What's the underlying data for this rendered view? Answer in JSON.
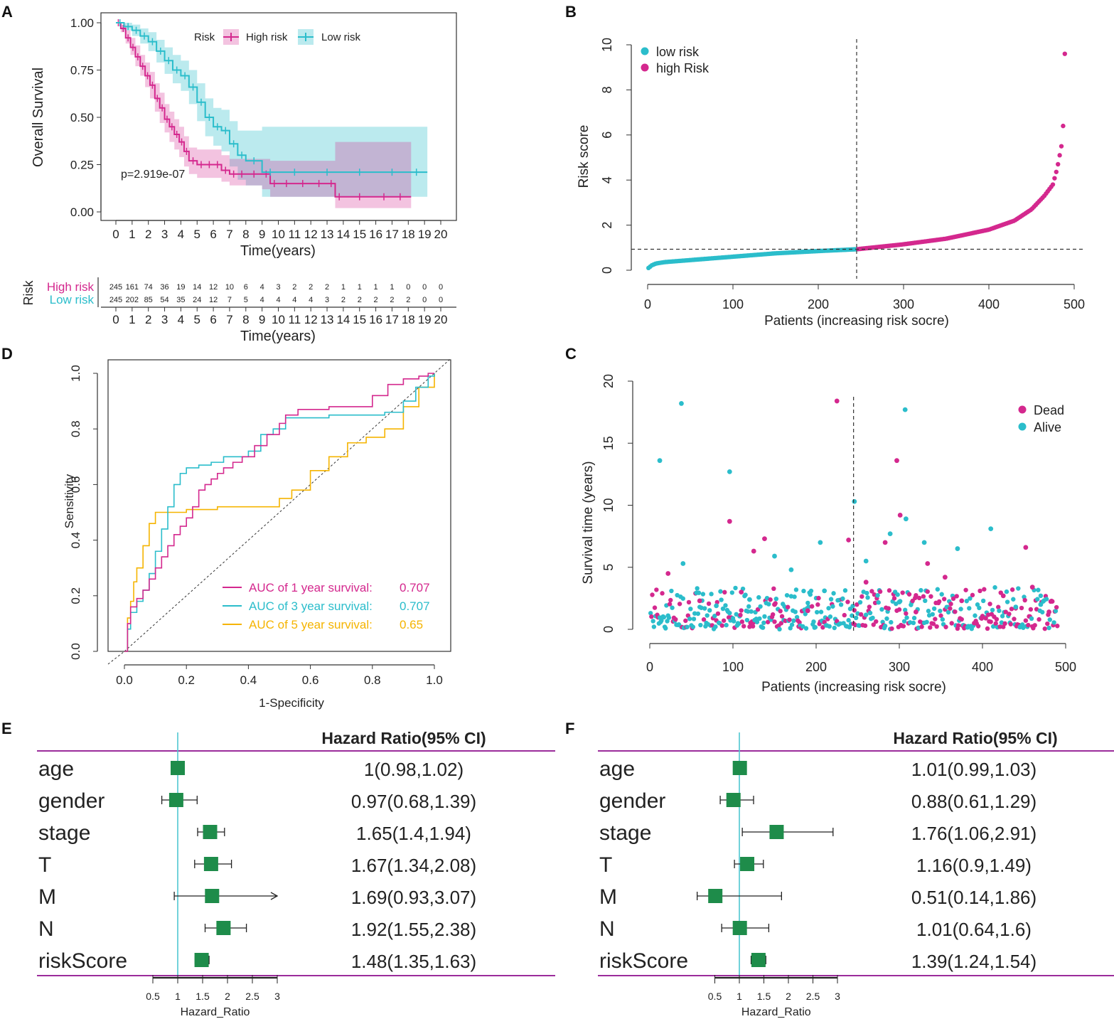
{
  "colors": {
    "magenta": "#d4288e",
    "cyan": "#2bbdcb",
    "orange": "#f5b400",
    "green": "#1e8c4a",
    "purple": "#9b2c9b",
    "refline": "#4fc7d0"
  },
  "chart_data": [
    {
      "panel": "A",
      "type": "line",
      "title": "",
      "xlabel": "Time(years)",
      "ylabel": "Overall  Survival",
      "xlim": [
        0,
        20
      ],
      "ylim": [
        0,
        1
      ],
      "xticks": [
        "0",
        "1",
        "2",
        "3",
        "4",
        "5",
        "6",
        "7",
        "8",
        "9",
        "10",
        "11",
        "12",
        "13",
        "14",
        "15",
        "16",
        "17",
        "18",
        "19",
        "20"
      ],
      "yticks": [
        "0.00",
        "0.25",
        "0.50",
        "0.75",
        "1.00"
      ],
      "legend_title": "Risk",
      "pvalue": "p=2.919e-07",
      "series": [
        {
          "name": "High risk",
          "x": [
            0,
            0.3,
            0.6,
            0.9,
            1.2,
            1.5,
            1.8,
            2.1,
            2.4,
            2.7,
            3,
            3.3,
            3.6,
            3.9,
            4.2,
            4.5,
            5,
            5.5,
            6,
            6.5,
            7,
            7.5,
            8,
            9,
            9.5,
            10,
            11,
            12,
            13,
            13.5,
            14,
            16,
            17,
            18
          ],
          "y": [
            1,
            0.97,
            0.92,
            0.87,
            0.82,
            0.77,
            0.72,
            0.67,
            0.6,
            0.55,
            0.49,
            0.45,
            0.41,
            0.37,
            0.32,
            0.27,
            0.25,
            0.25,
            0.25,
            0.22,
            0.2,
            0.2,
            0.2,
            0.2,
            0.15,
            0.15,
            0.15,
            0.15,
            0.15,
            0.08,
            0.08,
            0.08,
            0.08,
            0.08
          ],
          "lower": [
            1,
            0.95,
            0.89,
            0.83,
            0.77,
            0.72,
            0.66,
            0.6,
            0.53,
            0.47,
            0.42,
            0.37,
            0.33,
            0.29,
            0.24,
            0.2,
            0.18,
            0.18,
            0.18,
            0.16,
            0.14,
            0.14,
            0.14,
            0.12,
            0.08,
            0.08,
            0.08,
            0.08,
            0.08,
            0.02,
            0.02,
            0.02,
            0.02,
            0.02
          ],
          "upper": [
            1,
            0.99,
            0.96,
            0.92,
            0.88,
            0.83,
            0.79,
            0.74,
            0.68,
            0.63,
            0.57,
            0.53,
            0.49,
            0.45,
            0.4,
            0.34,
            0.33,
            0.33,
            0.33,
            0.3,
            0.28,
            0.28,
            0.28,
            0.28,
            0.27,
            0.27,
            0.27,
            0.27,
            0.27,
            0.37,
            0.37,
            0.37,
            0.37,
            0.37
          ]
        },
        {
          "name": "Low risk",
          "x": [
            0,
            0.5,
            1,
            1.5,
            2,
            2.5,
            3,
            3.5,
            4,
            4.5,
            5,
            5.5,
            6,
            6.5,
            7,
            7.5,
            8,
            9,
            10,
            12,
            14,
            16,
            18,
            19
          ],
          "y": [
            1,
            0.98,
            0.96,
            0.93,
            0.9,
            0.85,
            0.8,
            0.75,
            0.72,
            0.66,
            0.58,
            0.5,
            0.45,
            0.43,
            0.36,
            0.3,
            0.27,
            0.21,
            0.21,
            0.21,
            0.21,
            0.21,
            0.21,
            0.21
          ],
          "lower": [
            1,
            0.96,
            0.93,
            0.89,
            0.85,
            0.79,
            0.73,
            0.68,
            0.64,
            0.57,
            0.48,
            0.4,
            0.35,
            0.32,
            0.24,
            0.17,
            0.14,
            0.08,
            0.08,
            0.08,
            0.08,
            0.08,
            0.08,
            0.08
          ],
          "upper": [
            1,
            1,
            0.99,
            0.97,
            0.95,
            0.91,
            0.87,
            0.83,
            0.8,
            0.75,
            0.68,
            0.6,
            0.55,
            0.54,
            0.48,
            0.43,
            0.43,
            0.45,
            0.45,
            0.45,
            0.45,
            0.45,
            0.45,
            0.45
          ]
        }
      ]
    },
    {
      "panel": "A-table",
      "type": "table",
      "title": "Risk",
      "xlabel": "Time(years)",
      "columns": [
        "0",
        "1",
        "2",
        "3",
        "4",
        "5",
        "6",
        "7",
        "8",
        "9",
        "10",
        "11",
        "12",
        "13",
        "14",
        "15",
        "16",
        "17",
        "18",
        "19",
        "20"
      ],
      "rows": [
        {
          "name": "High risk",
          "values": [
            "245",
            "161",
            "74",
            "36",
            "19",
            "14",
            "12",
            "10",
            "6",
            "4",
            "3",
            "2",
            "2",
            "2",
            "1",
            "1",
            "1",
            "1",
            "0",
            "0",
            "0"
          ]
        },
        {
          "name": "Low risk",
          "values": [
            "245",
            "202",
            "85",
            "54",
            "35",
            "24",
            "12",
            "7",
            "5",
            "4",
            "4",
            "4",
            "4",
            "3",
            "2",
            "2",
            "2",
            "2",
            "2",
            "0",
            "0"
          ]
        }
      ]
    },
    {
      "panel": "B",
      "type": "scatter",
      "xlabel": "Patients (increasing risk socre)",
      "ylabel": "Risk score",
      "xlim": [
        0,
        500
      ],
      "ylim": [
        0,
        10
      ],
      "xticks": [
        "0",
        "100",
        "200",
        "300",
        "400",
        "500"
      ],
      "yticks": [
        "0",
        "2",
        "4",
        "6",
        "8",
        "10"
      ],
      "cutoff_x": 245,
      "cutoff_y": 0.93,
      "n": 490,
      "series": [
        {
          "name": "low risk",
          "x_range": [
            1,
            245
          ],
          "y_range": [
            0.1,
            0.93
          ]
        },
        {
          "name": "high Risk",
          "x_range": [
            246,
            490
          ],
          "y_range": [
            0.93,
            10
          ]
        }
      ],
      "curve_points": [
        [
          1,
          0.1
        ],
        [
          5,
          0.22
        ],
        [
          10,
          0.3
        ],
        [
          20,
          0.36
        ],
        [
          50,
          0.45
        ],
        [
          100,
          0.6
        ],
        [
          150,
          0.75
        ],
        [
          200,
          0.85
        ],
        [
          245,
          0.93
        ],
        [
          300,
          1.15
        ],
        [
          350,
          1.4
        ],
        [
          400,
          1.8
        ],
        [
          430,
          2.2
        ],
        [
          450,
          2.7
        ],
        [
          465,
          3.3
        ],
        [
          475,
          3.8
        ],
        [
          480,
          4.5
        ],
        [
          485,
          5.5
        ],
        [
          487,
          6.4
        ],
        [
          488,
          8.8
        ],
        [
          489,
          9.6
        ],
        [
          490,
          10
        ]
      ]
    },
    {
      "panel": "C",
      "type": "scatter",
      "xlabel": "Patients (increasing risk socre)",
      "ylabel": "Survival time (years)",
      "xlim": [
        0,
        500
      ],
      "ylim": [
        0,
        20
      ],
      "xticks": [
        "0",
        "100",
        "200",
        "300",
        "400",
        "500"
      ],
      "yticks": [
        "0",
        "5",
        "10",
        "15",
        "20"
      ],
      "cutoff_x": 245,
      "series": [
        {
          "name": "Dead",
          "points": [
            [
              22,
              4.5
            ],
            [
              96,
              8.7
            ],
            [
              138,
              7.3
            ],
            [
              125,
              6.3
            ],
            [
              225,
              18.4
            ],
            [
              239,
              7.2
            ],
            [
              283,
              7.0
            ],
            [
              297,
              13.6
            ],
            [
              301,
              9.2
            ],
            [
              334,
              5.3
            ],
            [
              355,
              4.2
            ],
            [
              375,
              2.3
            ],
            [
              452,
              6.6
            ],
            [
              425,
              2.7
            ],
            [
              460,
              3.4
            ],
            [
              60,
              2.3
            ],
            [
              110,
              3.0
            ],
            [
              150,
              2.0
            ],
            [
              190,
              1.5
            ],
            [
              260,
              3.8
            ],
            [
              320,
              1.4
            ],
            [
              400,
              1.0
            ],
            [
              480,
              1.4
            ]
          ]
        },
        {
          "name": "Alive",
          "points": [
            [
              12,
              13.6
            ],
            [
              38,
              18.2
            ],
            [
              96,
              12.7
            ],
            [
              246,
              10.3
            ],
            [
              307,
              17.7
            ],
            [
              308,
              8.9
            ],
            [
              289,
              7.7
            ],
            [
              410,
              8.1
            ],
            [
              370,
              6.5
            ],
            [
              205,
              7.0
            ],
            [
              40,
              5.3
            ],
            [
              150,
              5.9
            ],
            [
              330,
              7.0
            ],
            [
              170,
              4.8
            ],
            [
              260,
              5.5
            ],
            [
              210,
              3.1
            ],
            [
              80,
              1.9
            ],
            [
              120,
              2.4
            ],
            [
              300,
              2.2
            ],
            [
              440,
              1.8
            ],
            [
              470,
              2.0
            ]
          ]
        }
      ]
    },
    {
      "panel": "D",
      "type": "line",
      "xlabel": "1-Specificity",
      "ylabel": "Sensitivity",
      "xlim": [
        0,
        1
      ],
      "ylim": [
        0,
        1
      ],
      "xticks": [
        "0.0",
        "0.2",
        "0.4",
        "0.6",
        "0.8",
        "1.0"
      ],
      "yticks": [
        "0.0",
        "0.2",
        "0.4",
        "0.6",
        "0.8",
        "1.0"
      ],
      "series": [
        {
          "name": "AUC of 1 year survival:",
          "auc": "0.707",
          "x": [
            0,
            0.01,
            0.02,
            0.04,
            0.06,
            0.08,
            0.1,
            0.12,
            0.14,
            0.16,
            0.18,
            0.2,
            0.22,
            0.24,
            0.26,
            0.28,
            0.3,
            0.32,
            0.35,
            0.38,
            0.42,
            0.46,
            0.5,
            0.52,
            0.56,
            0.6,
            0.66,
            0.72,
            0.8,
            0.85,
            0.9,
            0.95,
            0.98,
            1
          ],
          "y": [
            0,
            0.1,
            0.16,
            0.19,
            0.22,
            0.26,
            0.3,
            0.34,
            0.38,
            0.42,
            0.45,
            0.48,
            0.52,
            0.58,
            0.6,
            0.62,
            0.64,
            0.66,
            0.68,
            0.7,
            0.74,
            0.78,
            0.82,
            0.85,
            0.87,
            0.87,
            0.88,
            0.88,
            0.92,
            0.96,
            0.98,
            0.99,
            1,
            1
          ]
        },
        {
          "name": "AUC of 3 year survival:",
          "auc": "0.707",
          "x": [
            0,
            0.01,
            0.02,
            0.04,
            0.06,
            0.08,
            0.1,
            0.12,
            0.14,
            0.16,
            0.18,
            0.2,
            0.24,
            0.28,
            0.32,
            0.36,
            0.4,
            0.44,
            0.48,
            0.52,
            0.56,
            0.6,
            0.66,
            0.72,
            0.78,
            0.84,
            0.9,
            0.94,
            0.98,
            1
          ],
          "y": [
            0,
            0.08,
            0.14,
            0.18,
            0.22,
            0.28,
            0.36,
            0.44,
            0.52,
            0.6,
            0.64,
            0.66,
            0.67,
            0.68,
            0.7,
            0.7,
            0.72,
            0.78,
            0.8,
            0.84,
            0.84,
            0.84,
            0.85,
            0.85,
            0.85,
            0.86,
            0.9,
            0.95,
            0.99,
            1
          ]
        },
        {
          "name": "AUC of 5 year survival:",
          "auc": "0.65",
          "x": [
            0,
            0.01,
            0.02,
            0.03,
            0.04,
            0.06,
            0.08,
            0.1,
            0.14,
            0.2,
            0.26,
            0.3,
            0.34,
            0.4,
            0.46,
            0.5,
            0.54,
            0.6,
            0.66,
            0.72,
            0.78,
            0.84,
            0.9,
            0.95,
            1
          ],
          "y": [
            0,
            0.12,
            0.18,
            0.25,
            0.3,
            0.38,
            0.46,
            0.5,
            0.5,
            0.51,
            0.51,
            0.52,
            0.52,
            0.52,
            0.52,
            0.55,
            0.58,
            0.65,
            0.7,
            0.75,
            0.77,
            0.8,
            0.88,
            0.95,
            1
          ]
        }
      ]
    },
    {
      "panel": "E",
      "type": "forest",
      "header": "Hazard Ratio(95% CI)",
      "xlabel": "Hazard_Ratio",
      "xlim": [
        0.5,
        3
      ],
      "xticks": [
        "0.5",
        "1",
        "1.5",
        "2",
        "2.5",
        "3"
      ],
      "rows": [
        {
          "label": "age",
          "hr": 1,
          "lo": 0.98,
          "hi": 1.02,
          "text": "1(0.98,1.02)"
        },
        {
          "label": "gender",
          "hr": 0.97,
          "lo": 0.68,
          "hi": 1.39,
          "text": "0.97(0.68,1.39)"
        },
        {
          "label": "stage",
          "hr": 1.65,
          "lo": 1.4,
          "hi": 1.94,
          "text": "1.65(1.4,1.94)"
        },
        {
          "label": "T",
          "hr": 1.67,
          "lo": 1.34,
          "hi": 2.08,
          "text": "1.67(1.34,2.08)"
        },
        {
          "label": "M",
          "hr": 1.69,
          "lo": 0.93,
          "hi": 3.07,
          "text": "1.69(0.93,3.07)"
        },
        {
          "label": "N",
          "hr": 1.92,
          "lo": 1.55,
          "hi": 2.38,
          "text": "1.92(1.55,2.38)"
        },
        {
          "label": "riskScore",
          "hr": 1.48,
          "lo": 1.35,
          "hi": 1.63,
          "text": "1.48(1.35,1.63)"
        }
      ]
    },
    {
      "panel": "F",
      "type": "forest",
      "header": "Hazard Ratio(95% CI)",
      "xlabel": "Hazard_Ratio",
      "xlim": [
        0.5,
        3
      ],
      "xticks": [
        "0.5",
        "1",
        "1.5",
        "2",
        "2.5",
        "3"
      ],
      "rows": [
        {
          "label": "age",
          "hr": 1.01,
          "lo": 0.99,
          "hi": 1.03,
          "text": "1.01(0.99,1.03)"
        },
        {
          "label": "gender",
          "hr": 0.88,
          "lo": 0.61,
          "hi": 1.29,
          "text": "0.88(0.61,1.29)"
        },
        {
          "label": "stage",
          "hr": 1.76,
          "lo": 1.06,
          "hi": 2.91,
          "text": "1.76(1.06,2.91)"
        },
        {
          "label": "T",
          "hr": 1.16,
          "lo": 0.9,
          "hi": 1.49,
          "text": "1.16(0.9,1.49)"
        },
        {
          "label": "M",
          "hr": 0.51,
          "lo": 0.14,
          "hi": 1.86,
          "text": "0.51(0.14,1.86)"
        },
        {
          "label": "N",
          "hr": 1.01,
          "lo": 0.64,
          "hi": 1.6,
          "text": "1.01(0.64,1.6)"
        },
        {
          "label": "riskScore",
          "hr": 1.39,
          "lo": 1.24,
          "hi": 1.54,
          "text": "1.39(1.24,1.54)"
        }
      ]
    }
  ]
}
